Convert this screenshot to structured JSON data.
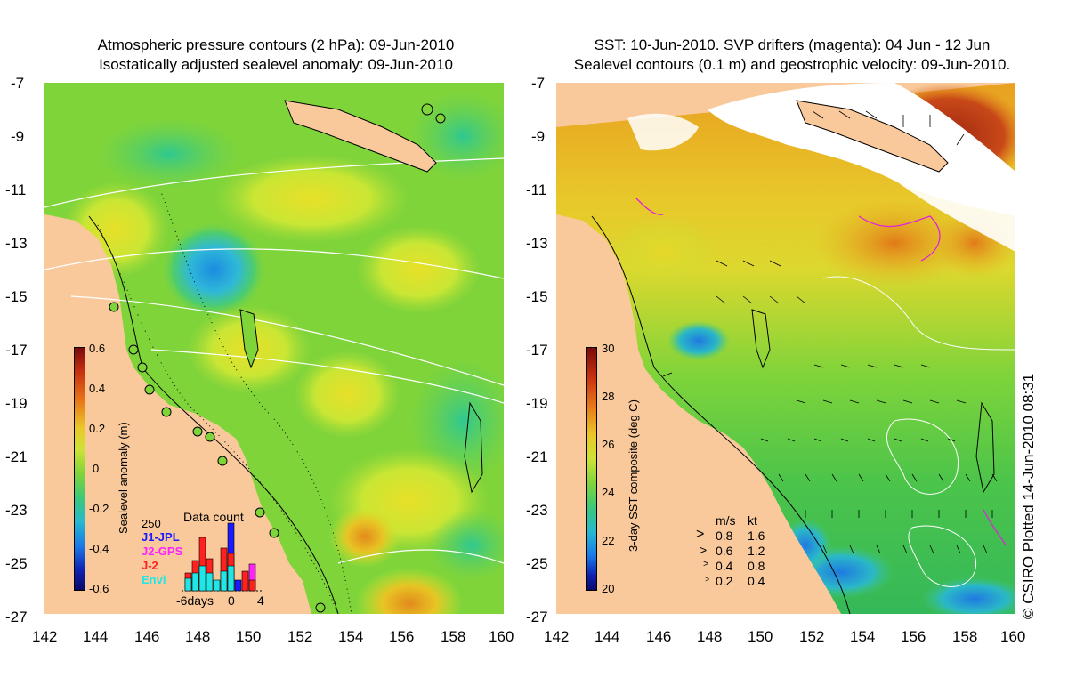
{
  "left_panel": {
    "title_line1": "Atmospheric pressure contours (2 hPa): 09-Jun-2010",
    "title_line2": "Isostatically adjusted sealevel anomaly: 09-Jun-2010",
    "y_ticks": [
      "-7",
      "-9",
      "-11",
      "-13",
      "-15",
      "-17",
      "-19",
      "-21",
      "-23",
      "-25",
      "-27"
    ],
    "x_ticks": [
      "142",
      "144",
      "146",
      "148",
      "150",
      "152",
      "154",
      "156",
      "158",
      "160"
    ],
    "colorbar": {
      "label": "Sealevel anomaly (m)",
      "ticks": [
        "0.6",
        "0.4",
        "0.2",
        "0",
        "-0.2",
        "-0.4",
        "-0.6"
      ]
    },
    "data_count": {
      "title": "Data count",
      "max_label": "250",
      "legend": [
        {
          "label": "J1-JPL",
          "color": "#1a1aff"
        },
        {
          "label": "J2-GPS",
          "color": "#ff22ff"
        },
        {
          "label": "J-2",
          "color": "#ff2020"
        },
        {
          "label": "Envi",
          "color": "#22e6e6"
        }
      ],
      "x_labels": [
        "-6days",
        "0",
        "4"
      ]
    }
  },
  "right_panel": {
    "title_line1": "SST: 10-Jun-2010. SVP drifters (magenta): 04 Jun - 12 Jun",
    "title_line2": "Sealevel contours (0.1 m) and geostrophic velocity: 09-Jun-2010.",
    "y_ticks": [
      "-7",
      "-9",
      "-11",
      "-13",
      "-15",
      "-17",
      "-19",
      "-21",
      "-23",
      "-25",
      "-27"
    ],
    "x_ticks": [
      "142",
      "144",
      "146",
      "148",
      "150",
      "152",
      "154",
      "156",
      "158",
      "160"
    ],
    "colorbar": {
      "label": "3-day SST composite (deg C)",
      "ticks": [
        "30",
        "28",
        "26",
        "24",
        "22",
        "20"
      ]
    },
    "velocity_legend": {
      "header_ms": "m/s",
      "header_kt": "kt",
      "rows": [
        {
          "ms": "0.8",
          "kt": "1.6"
        },
        {
          "ms": "0.6",
          "kt": "1.2"
        },
        {
          "ms": "0.4",
          "kt": "0.8"
        },
        {
          "ms": "0.2",
          "kt": "0.4"
        }
      ]
    }
  },
  "copyright": "© CSIRO Plotted 14-Jun-2010 08:31",
  "colors": {
    "land": "#f9c99b",
    "ocean_base": "#7fd43a",
    "ocean_yellow": "#cfe832",
    "cold_blue": "#1e90e6",
    "warm_orange": "#e88a1a",
    "hot_red": "#a82810"
  }
}
